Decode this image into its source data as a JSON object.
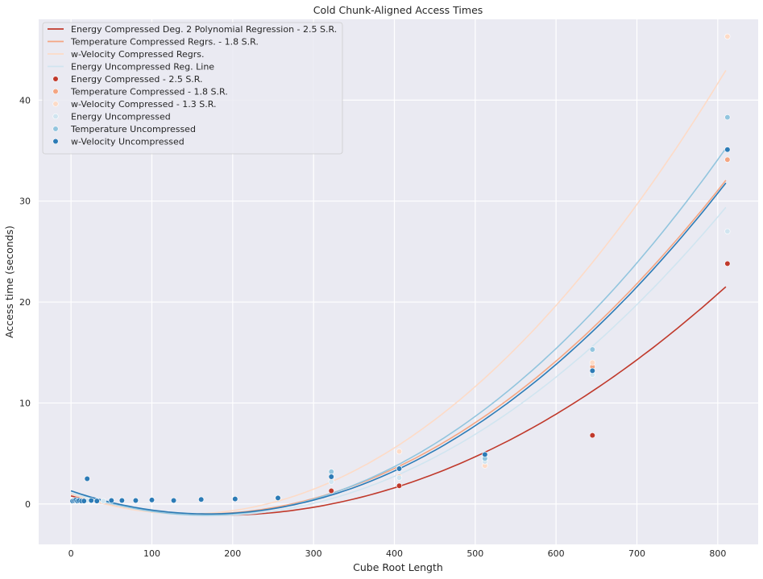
{
  "chart_data": {
    "type": "scatter",
    "title": "Cold Chunk-Aligned Access Times",
    "xlabel": "Cube Root Length",
    "ylabel": "Access time (seconds)",
    "xlim": [
      -40,
      850
    ],
    "ylim": [
      -4,
      48
    ],
    "xticks": [
      0,
      100,
      200,
      300,
      400,
      500,
      600,
      700,
      800
    ],
    "yticks": [
      0,
      10,
      20,
      30,
      40
    ],
    "grid": true,
    "background": "#eaeaf2",
    "legend_position": "top-left",
    "colors": {
      "energy_compressed": "#c0392b",
      "temperature_compressed": "#f4a582",
      "wvelocity_compressed": "#fddbc7",
      "energy_uncompressed": "#d1e5f0",
      "temperature_uncompressed": "#92c5de",
      "wvelocity_uncompressed": "#2c7bb6"
    },
    "regression_lines": [
      {
        "name": "Energy Compressed Deg. 2 Polynomial Regression - 2.5 S.R.",
        "color": "#c0392b",
        "coef": [
          0.8,
          -0.021,
          5.75e-05
        ],
        "x_range": [
          0,
          812
        ]
      },
      {
        "name": "Temperature Compressed Regrs. - 1.8 S.R.",
        "color": "#f4a582",
        "coef": [
          1.0,
          -0.025,
          7.82e-05
        ],
        "x_range": [
          0,
          812
        ]
      },
      {
        "name": "w-Velocity Compressed Regrs.",
        "color": "#fddbc7",
        "coef": [
          1.0,
          -0.028,
          9.85e-05
        ],
        "x_range": [
          0,
          812
        ]
      },
      {
        "name": "Energy Uncompressed Reg. Line",
        "color": "#d1e5f0",
        "coef": [
          1.1,
          -0.026,
          7.52e-05
        ],
        "x_range": [
          0,
          812
        ]
      },
      {
        "name": "",
        "color": "#92c5de",
        "coef": [
          1.3,
          -0.029,
          8.75e-05
        ],
        "x_range": [
          0,
          812
        ]
      },
      {
        "name": "",
        "color": "#2c7bb6",
        "coef": [
          1.3,
          -0.027,
          7.98e-05
        ],
        "x_range": [
          0,
          812
        ]
      }
    ],
    "series": [
      {
        "name": "Energy Compressed - 2.5 S.R.",
        "color": "#c0392b",
        "points": [
          [
            322,
            1.3
          ],
          [
            406,
            1.8
          ],
          [
            512,
            4.6
          ],
          [
            645,
            6.8
          ],
          [
            812,
            23.8
          ]
        ]
      },
      {
        "name": "Temperature Compressed - 1.8 S.R.",
        "color": "#f4a582",
        "points": [
          [
            322,
            2.6
          ],
          [
            406,
            2.7
          ],
          [
            512,
            4.4
          ],
          [
            645,
            13.6
          ],
          [
            812,
            34.1
          ]
        ]
      },
      {
        "name": "w-Velocity Compressed - 1.3 S.R.",
        "color": "#fddbc7",
        "points": [
          [
            406,
            5.2
          ],
          [
            512,
            3.8
          ],
          [
            645,
            14.0
          ],
          [
            812,
            46.3
          ]
        ]
      },
      {
        "name": "Energy Uncompressed",
        "color": "#d1e5f0",
        "points": [
          [
            2,
            0.3
          ],
          [
            5,
            0.3
          ],
          [
            8,
            0.35
          ],
          [
            12,
            0.3
          ],
          [
            20,
            0.35
          ],
          [
            25,
            0.3
          ],
          [
            32,
            0.3
          ],
          [
            40,
            0.3
          ],
          [
            50,
            0.35
          ],
          [
            63,
            0.35
          ],
          [
            80,
            0.35
          ],
          [
            100,
            0.4
          ],
          [
            127,
            0.35
          ],
          [
            161,
            0.45
          ],
          [
            203,
            0.5
          ],
          [
            256,
            0.6
          ],
          [
            322,
            2.2
          ],
          [
            406,
            2.6
          ],
          [
            512,
            4.2
          ],
          [
            645,
            12.8
          ],
          [
            812,
            27.0
          ]
        ]
      },
      {
        "name": "Temperature Uncompressed",
        "color": "#92c5de",
        "points": [
          [
            322,
            3.2
          ],
          [
            406,
            3.5
          ],
          [
            512,
            4.5
          ],
          [
            645,
            15.3
          ],
          [
            812,
            38.3
          ]
        ]
      },
      {
        "name": "w-Velocity Uncompressed",
        "color": "#2c7bb6",
        "points": [
          [
            2,
            0.3
          ],
          [
            4,
            0.35
          ],
          [
            6,
            0.4
          ],
          [
            8,
            0.3
          ],
          [
            10,
            0.35
          ],
          [
            13,
            0.3
          ],
          [
            16,
            0.3
          ],
          [
            20,
            2.5
          ],
          [
            25,
            0.35
          ],
          [
            32,
            0.3
          ],
          [
            50,
            0.35
          ],
          [
            63,
            0.35
          ],
          [
            80,
            0.35
          ],
          [
            100,
            0.4
          ],
          [
            127,
            0.35
          ],
          [
            161,
            0.45
          ],
          [
            203,
            0.5
          ],
          [
            256,
            0.6
          ],
          [
            322,
            2.7
          ],
          [
            406,
            3.5
          ],
          [
            512,
            4.9
          ],
          [
            645,
            13.2
          ],
          [
            812,
            35.1
          ]
        ]
      }
    ]
  }
}
